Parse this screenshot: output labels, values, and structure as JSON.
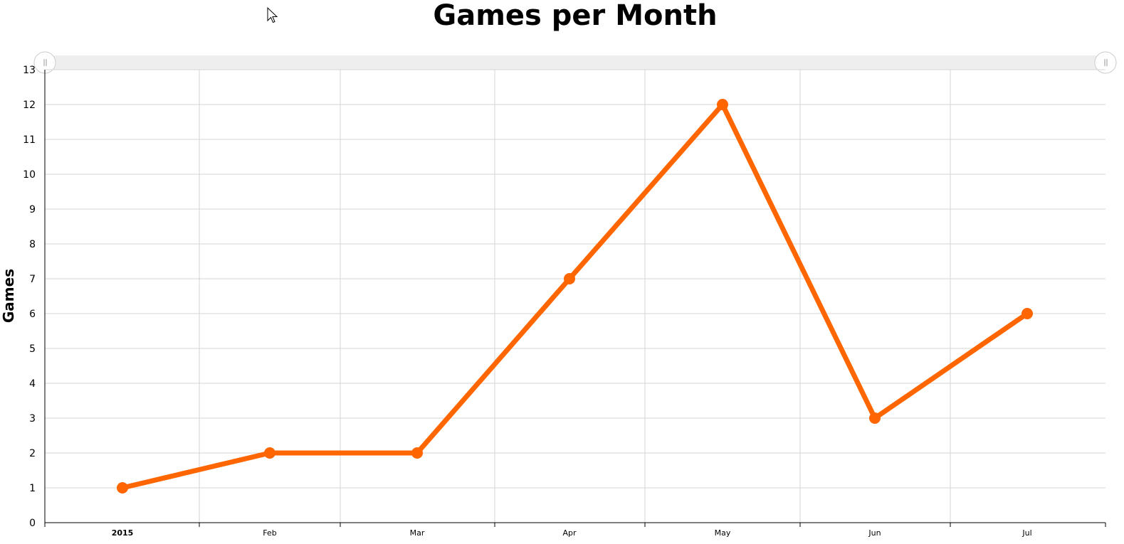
{
  "chart_data": {
    "type": "line",
    "title": "Games per Month",
    "xlabel": "",
    "ylabel": "Games",
    "ylim": [
      0,
      13
    ],
    "yticks": [
      0,
      1,
      2,
      3,
      4,
      5,
      6,
      7,
      8,
      9,
      10,
      11,
      12,
      13
    ],
    "categories": [
      "2015",
      "Feb",
      "Mar",
      "Apr",
      "May",
      "Jun",
      "Jul"
    ],
    "series": [
      {
        "values": [
          1,
          2,
          2,
          7,
          12,
          3,
          6
        ],
        "color": "#ff6600"
      }
    ],
    "grid": true,
    "legend": "none",
    "scrollbar": true
  },
  "icons": {
    "cursor": "mouse-pointer-icon",
    "scroll_left": "scrollbar-left-grip-icon",
    "scroll_right": "scrollbar-right-grip-icon"
  }
}
